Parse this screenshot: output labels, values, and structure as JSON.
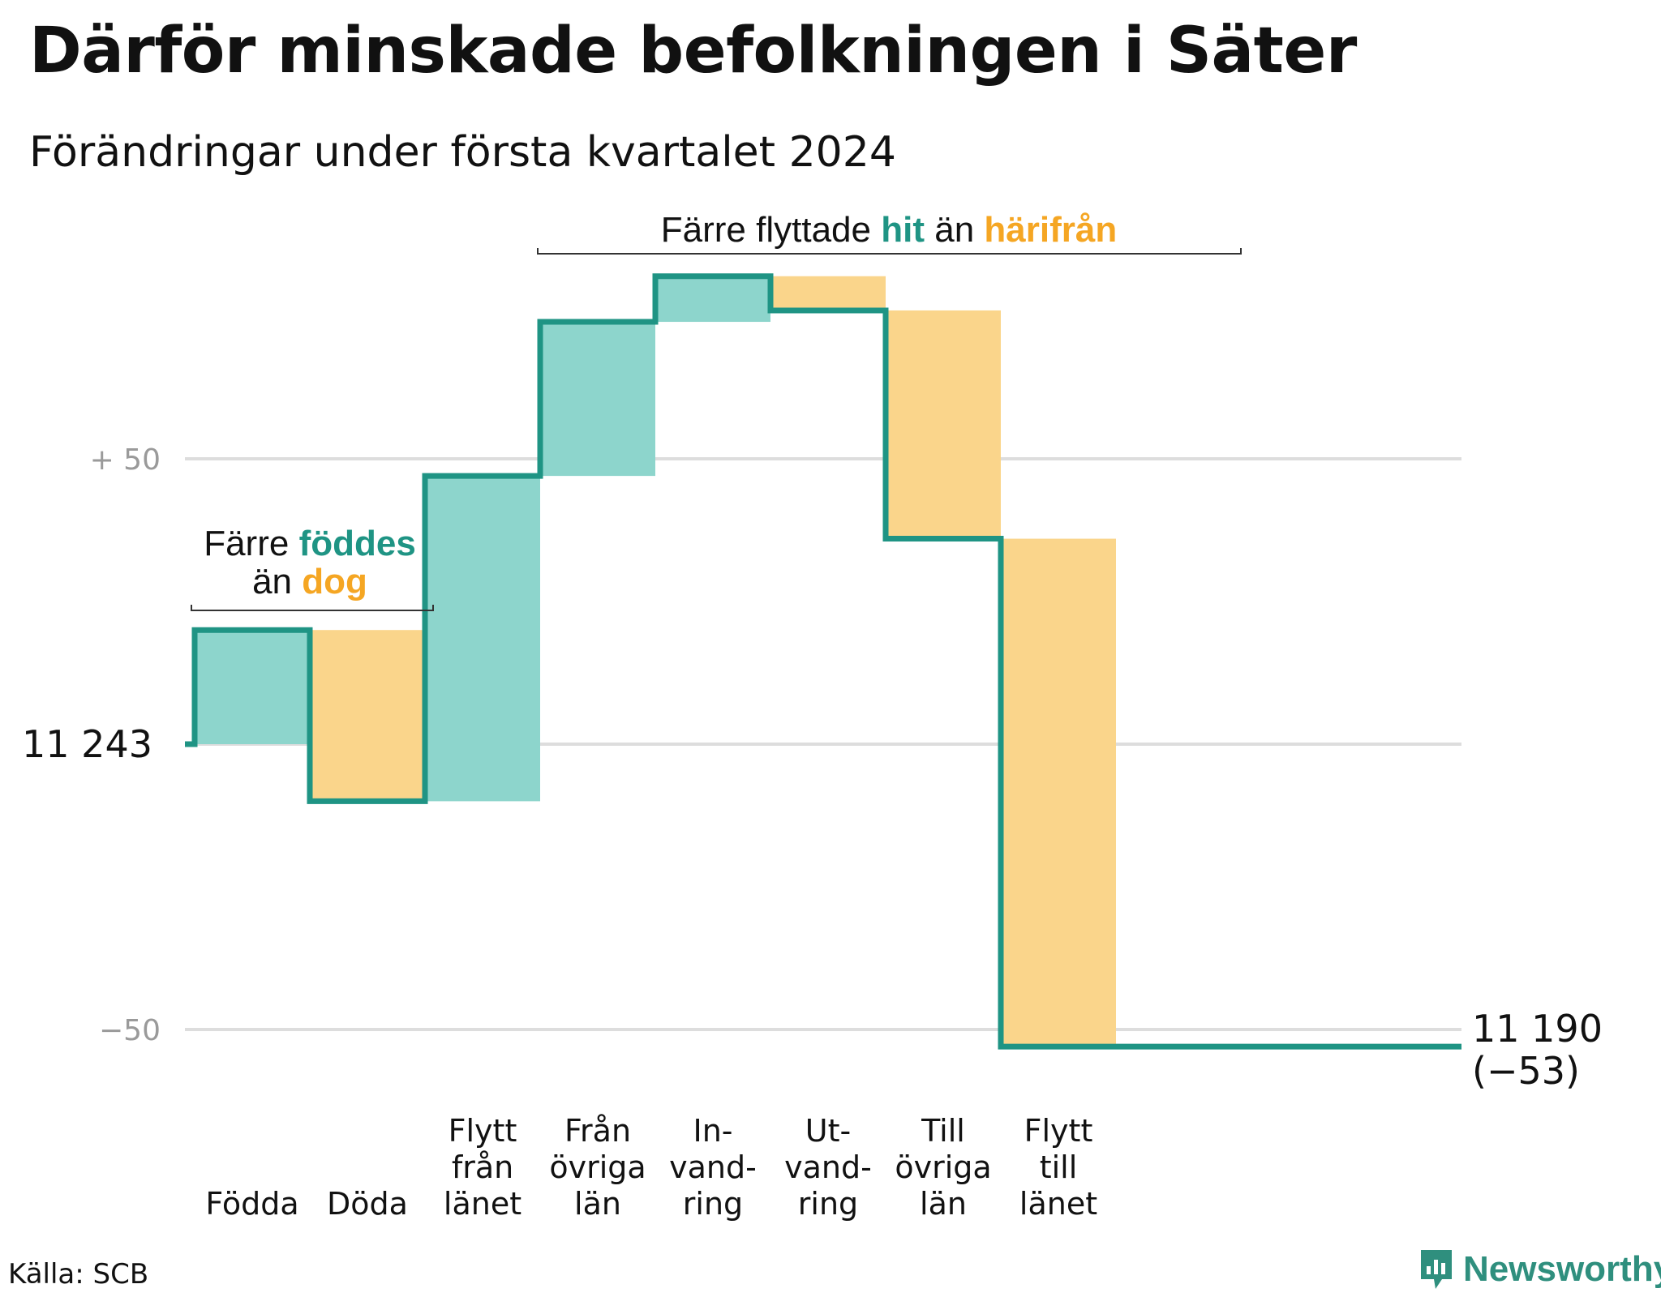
{
  "title": "Därför minskade befolkningen i Säter",
  "subtitle": "Förändringar under första kvartalet 2024",
  "source": "Källa: SCB",
  "brand": "Newsworthy",
  "colors": {
    "increase": "#8dd5cc",
    "decrease": "#fad58b",
    "line": "#1f9484",
    "grid": "#dddddd",
    "teal_text": "#1f9484",
    "orange_text": "#f5a623",
    "axis_text": "#9a9a9a"
  },
  "annotations": {
    "births": {
      "line1_prefix": "Färre",
      "line1_highlight": "föddes",
      "line2_prefix": "än",
      "line2_highlight": "dog"
    },
    "moves": {
      "prefix": "Färre flyttade",
      "highlight1": "hit",
      "middle": "än",
      "highlight2": "härifrån"
    }
  },
  "chart_data": {
    "type": "waterfall",
    "start_label": "11  243",
    "end_label_line1": "11 190",
    "end_label_line2": "(−53)",
    "start_value": 11243,
    "end_value": 11190,
    "net_change": -53,
    "ylim": [
      -60,
      105
    ],
    "yticks": [
      {
        "value": 50,
        "label": "+  50"
      },
      {
        "value": 0,
        "label": ""
      },
      {
        "value": -50,
        "label": "−50"
      }
    ],
    "grid": true,
    "steps": [
      {
        "category": [
          "Födda"
        ],
        "change": 20
      },
      {
        "category": [
          "Döda"
        ],
        "change": -30
      },
      {
        "category": [
          "Flytt",
          "från",
          "länet"
        ],
        "change": 57
      },
      {
        "category": [
          "Från",
          "övriga",
          "län"
        ],
        "change": 27
      },
      {
        "category": [
          "In-",
          "vand-",
          "ring"
        ],
        "change": 8
      },
      {
        "category": [
          "Ut-",
          "vand-",
          "ring"
        ],
        "change": -6
      },
      {
        "category": [
          "Till",
          "övriga",
          "län"
        ],
        "change": -40
      },
      {
        "category": [
          "Flytt",
          "till",
          "länet"
        ],
        "change": -89
      }
    ]
  }
}
